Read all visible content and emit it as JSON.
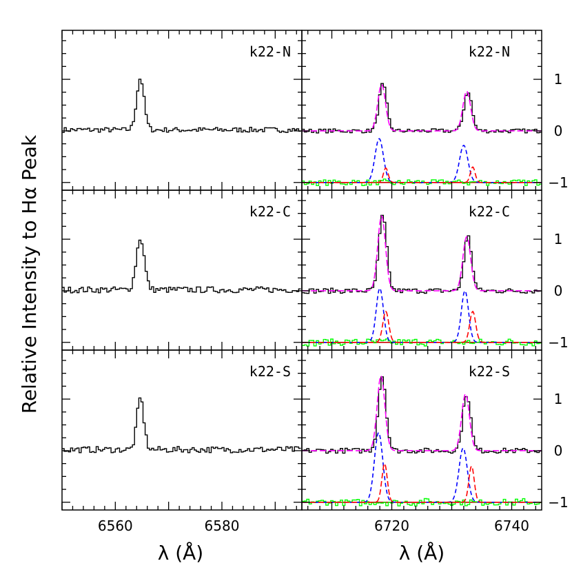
{
  "chart_data": {
    "type": "line",
    "ylabel": "Relative Intensity to Hα Peak",
    "xlabel_left": "λ  (Å)",
    "xlabel_right": "λ  (Å)",
    "left_xlim": [
      6550,
      6595
    ],
    "left_xticks": [
      6560,
      6580
    ],
    "right_xlim": [
      6705,
      6745
    ],
    "right_xticks": [
      6720,
      6740
    ],
    "ylim": [
      -1.15,
      1.95
    ],
    "right_yticks": [
      -1,
      0,
      1
    ],
    "right_ytick_labels": [
      "−1",
      "0",
      "1"
    ],
    "colors": {
      "observed": "#000000",
      "total_fit": "#ff00ff",
      "narrow_component": "#0000ff",
      "broad_component": "#ff0000",
      "residual": "#00ff00"
    },
    "rows": [
      {
        "label": "k22-N",
        "halpha": {
          "peak_x": 6564.5,
          "peak_y": 1.0,
          "sigma": 0.7,
          "noise": 0.05
        },
        "sii": {
          "lines": [
            {
              "center": 6718.3,
              "peak": 0.9,
              "narrow_center": 6717.9,
              "narrow_peak": 0.85,
              "broad_center": 6719.0,
              "broad_peak": 0.28
            },
            {
              "center": 6732.5,
              "peak": 0.77,
              "narrow_center": 6732.0,
              "narrow_peak": 0.72,
              "broad_center": 6733.5,
              "broad_peak": 0.3
            }
          ],
          "sigma_narrow": 0.7,
          "sigma_broad": 0.4,
          "noise": 0.04
        }
      },
      {
        "label": "k22-C",
        "halpha": {
          "peak_x": 6564.5,
          "peak_y": 1.0,
          "sigma": 0.75,
          "noise": 0.06
        },
        "sii": {
          "lines": [
            {
              "center": 6718.3,
              "peak": 1.45,
              "narrow_center": 6718.0,
              "narrow_peak": 1.05,
              "broad_center": 6719.0,
              "broad_peak": 0.6
            },
            {
              "center": 6732.5,
              "peak": 1.05,
              "narrow_center": 6732.2,
              "narrow_peak": 1.0,
              "broad_center": 6733.5,
              "broad_peak": 0.6
            }
          ],
          "sigma_narrow": 0.6,
          "sigma_broad": 0.5,
          "noise": 0.05
        }
      },
      {
        "label": "k22-S",
        "halpha": {
          "peak_x": 6564.5,
          "peak_y": 1.0,
          "sigma": 0.65,
          "noise": 0.06
        },
        "sii": {
          "lines": [
            {
              "center": 6718.2,
              "peak": 1.45,
              "narrow_center": 6717.8,
              "narrow_peak": 1.35,
              "broad_center": 6718.8,
              "broad_peak": 0.75
            },
            {
              "center": 6732.3,
              "peak": 1.1,
              "narrow_center": 6731.9,
              "narrow_peak": 1.05,
              "broad_center": 6733.3,
              "broad_peak": 0.7
            }
          ],
          "sigma_narrow": 0.7,
          "sigma_broad": 0.45,
          "noise": 0.05
        }
      }
    ]
  }
}
